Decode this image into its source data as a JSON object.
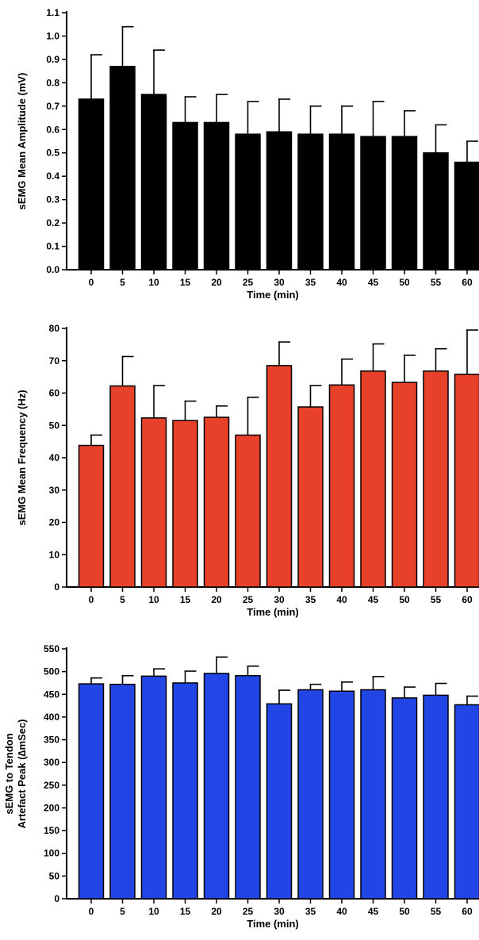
{
  "chart_data": [
    {
      "type": "bar",
      "color": "#000000",
      "xlabel": "Time (min)",
      "ylabel": [
        "sEMG Mean Amplitude (mV)"
      ],
      "ylim": [
        0,
        1.1
      ],
      "yticks": [
        0.0,
        0.1,
        0.2,
        0.3,
        0.4,
        0.5,
        0.6,
        0.7,
        0.8,
        0.9,
        1.0,
        1.1
      ],
      "ytick_labels": [
        "0.0",
        "0.1",
        "0.2",
        "0.3",
        "0.4",
        "0.5",
        "0.6",
        "0.7",
        "0.8",
        "0.9",
        "1.0",
        "1.1"
      ],
      "categories": [
        "0",
        "5",
        "10",
        "15",
        "20",
        "25",
        "30",
        "35",
        "40",
        "45",
        "50",
        "55",
        "60"
      ],
      "values": [
        0.73,
        0.87,
        0.75,
        0.63,
        0.63,
        0.58,
        0.59,
        0.58,
        0.58,
        0.57,
        0.57,
        0.5,
        0.46
      ],
      "error_upper": [
        0.92,
        1.04,
        0.94,
        0.74,
        0.75,
        0.72,
        0.73,
        0.7,
        0.7,
        0.72,
        0.68,
        0.62,
        0.55
      ]
    },
    {
      "type": "bar",
      "color": "#e8412a",
      "xlabel": "Time (min)",
      "ylabel": [
        "sEMG Mean Frequency (Hz)"
      ],
      "ylim": [
        0,
        80
      ],
      "yticks": [
        0,
        10,
        20,
        30,
        40,
        50,
        60,
        70,
        80
      ],
      "ytick_labels": [
        "0",
        "10",
        "20",
        "30",
        "40",
        "50",
        "60",
        "70",
        "80"
      ],
      "categories": [
        "0",
        "5",
        "10",
        "15",
        "20",
        "25",
        "30",
        "35",
        "40",
        "45",
        "50",
        "55",
        "60"
      ],
      "values": [
        43.8,
        62.2,
        52.3,
        51.5,
        52.5,
        47.0,
        68.5,
        55.7,
        62.5,
        66.8,
        63.3,
        66.8,
        65.8
      ],
      "error_upper": [
        47.0,
        71.3,
        62.3,
        57.5,
        56.0,
        58.7,
        75.8,
        62.3,
        70.5,
        75.2,
        71.7,
        73.7,
        79.5
      ]
    },
    {
      "type": "bar",
      "color": "#2246e6",
      "xlabel": "Time (min)",
      "ylabel": [
        "sEMG to Tendon",
        "Artefact Peak (∆mSec)"
      ],
      "ylim": [
        0,
        550
      ],
      "yticks": [
        0,
        50,
        100,
        150,
        200,
        250,
        300,
        350,
        400,
        450,
        500,
        550
      ],
      "ytick_labels": [
        "0",
        "50",
        "100",
        "150",
        "200",
        "250",
        "300",
        "350",
        "400",
        "450",
        "500",
        "550"
      ],
      "categories": [
        "0",
        "5",
        "10",
        "15",
        "20",
        "25",
        "30",
        "35",
        "40",
        "45",
        "50",
        "55",
        "60"
      ],
      "values": [
        473,
        472,
        490,
        475,
        496,
        491,
        429,
        460,
        457,
        460,
        442,
        448,
        427
      ],
      "error_upper": [
        486,
        491,
        506,
        501,
        532,
        512,
        459,
        472,
        477,
        489,
        466,
        474,
        446
      ]
    }
  ]
}
